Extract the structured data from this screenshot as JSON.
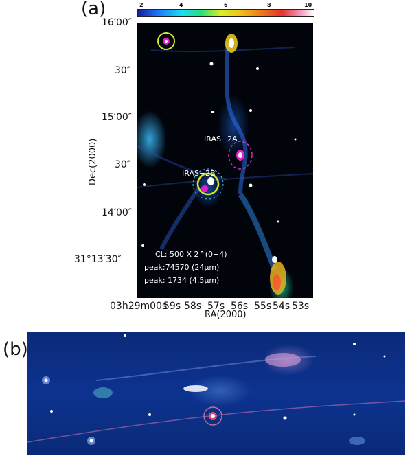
{
  "panel_a": {
    "label": "(a)",
    "colorbar_ticks": [
      "2",
      "4",
      "6",
      "8",
      "10"
    ],
    "dec_ticks": [
      "16′00″",
      "30″",
      "15′00″",
      "30″",
      "14′00″",
      "31°13′30″"
    ],
    "ra_ticks": [
      "03h29m00s",
      "59s",
      "58s",
      "57s",
      "56s",
      "55s",
      "54s",
      "53s"
    ],
    "xlabel": "RA(2000)",
    "ylabel": "Dec(2000)",
    "source_labels": [
      "IRAS−2A",
      "IRAS−2B"
    ],
    "annotations": [
      "CL: 500 X 2^(0−4)",
      "peak:74570 (24μm)",
      "peak: 1734 (4.5μm)"
    ]
  },
  "panel_b": {
    "label": "(b)"
  }
}
